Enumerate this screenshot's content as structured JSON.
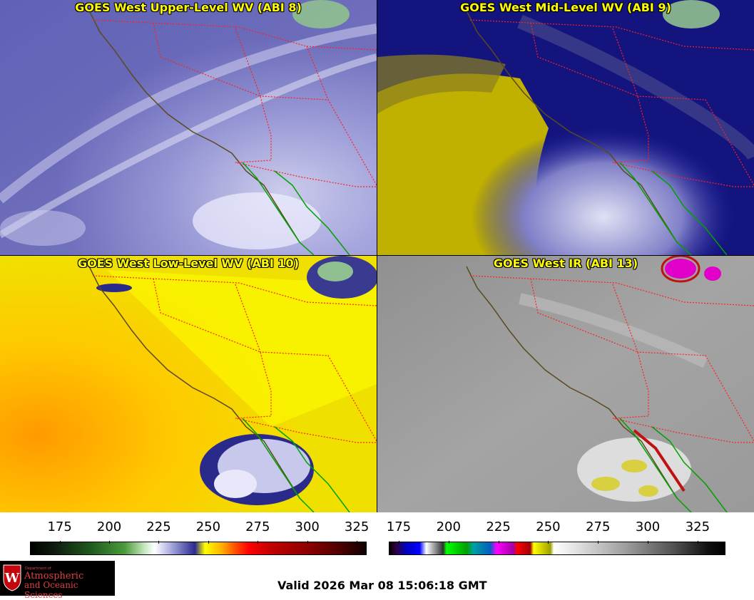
{
  "panels": [
    {
      "title": "GOES West Upper-Level WV (ABI 8)",
      "band": "ABI 8"
    },
    {
      "title": "GOES West Mid-Level WV (ABI 9)",
      "band": "ABI 9"
    },
    {
      "title": "GOES West Low-Level WV (ABI 10)",
      "band": "ABI 10"
    },
    {
      "title": "GOES West IR (ABI 13)",
      "band": "ABI 13"
    }
  ],
  "colorbar_left": {
    "ticks": [
      "175",
      "200",
      "225",
      "250",
      "275",
      "300",
      "325"
    ],
    "min": 160,
    "max": 330
  },
  "colorbar_right": {
    "ticks": [
      "175",
      "200",
      "225",
      "250",
      "275",
      "300",
      "325"
    ],
    "min": 170,
    "max": 339
  },
  "logo": {
    "dept": "Department of",
    "line1": "Atmospheric",
    "line2": "and Oceanic Sciences"
  },
  "valid_time": "Valid 2026 Mar 08 15:06:18 GMT",
  "colors": {
    "title_text": "#ffff00",
    "coast": "#5a4a1e",
    "state_border": "#ff2020",
    "mexico_coast": "#00a000"
  }
}
